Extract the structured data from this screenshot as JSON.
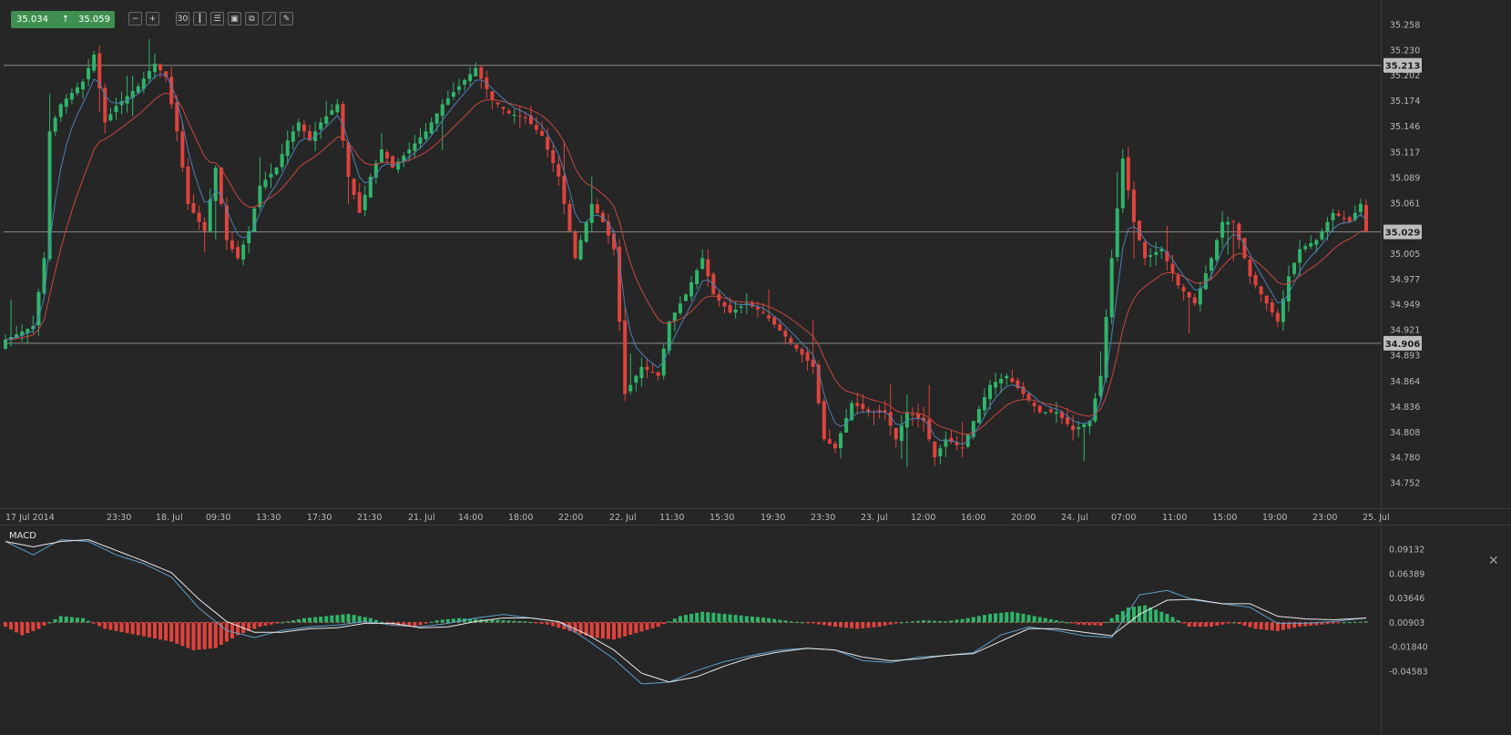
{
  "header": {
    "bid": "35.034",
    "ask": "35.059",
    "arrow_icon": "arrow-up-icon"
  },
  "toolbar": [
    {
      "name": "zoom-out-icon",
      "glyph": "−"
    },
    {
      "name": "zoom-in-icon",
      "glyph": "+"
    },
    {
      "name": "timeframe-button",
      "glyph": "30"
    },
    {
      "name": "candles-icon",
      "glyph": "┃"
    },
    {
      "name": "indicators-icon",
      "glyph": "☰"
    },
    {
      "name": "chart-type-icon",
      "glyph": "▣"
    },
    {
      "name": "copy-icon",
      "glyph": "⧉"
    },
    {
      "name": "draw-line-icon",
      "glyph": "⟋"
    },
    {
      "name": "pencil-icon",
      "glyph": "✎"
    }
  ],
  "colors": {
    "background": "#262626",
    "up": "#2fb56a",
    "down": "#e0433d",
    "ema_fast": "#4b7fb3",
    "ema_slow": "#c8473f",
    "macd_line": "#5d9fc9",
    "signal_line": "#e8e8e8",
    "level_line": "#8c8c8c",
    "grid_text": "#b8b8b8"
  },
  "chart_data": [
    {
      "type": "candlestick",
      "title": "",
      "y_ticks": [
        "35.258",
        "35.230",
        "35.202",
        "35.174",
        "35.146",
        "35.117",
        "35.089",
        "35.061",
        "35.005",
        "34.977",
        "34.949",
        "34.921",
        "34.893",
        "34.864",
        "34.836",
        "34.808",
        "34.780",
        "34.752"
      ],
      "ylim": [
        34.73,
        35.275
      ],
      "x_labels": [
        "17 Jul 2014",
        "23:30",
        "18. Jul",
        "09:30",
        "13:30",
        "17:30",
        "21:30",
        "21. Jul",
        "14:00",
        "18:00",
        "22:00",
        "22. Jul",
        "11:30",
        "15:30",
        "19:30",
        "23:30",
        "23. Jul",
        "12:00",
        "16:00",
        "20:00",
        "24. Jul",
        "07:00",
        "11:00",
        "15:00",
        "19:00",
        "23:00",
        "25. Jul"
      ],
      "levels": [
        "35.213",
        "35.029",
        "34.906"
      ],
      "overlays": [
        "fast moving average (blue)",
        "slow moving average (red)"
      ],
      "anchors": [
        [
          0,
          34.91
        ],
        [
          5,
          34.925
        ],
        [
          7,
          35.0
        ],
        [
          8,
          35.14
        ],
        [
          10,
          35.17
        ],
        [
          14,
          35.195
        ],
        [
          16,
          35.225
        ],
        [
          18,
          35.15
        ],
        [
          20,
          35.168
        ],
        [
          24,
          35.19
        ],
        [
          27,
          35.215
        ],
        [
          29,
          35.2
        ],
        [
          31,
          35.14
        ],
        [
          33,
          35.06
        ],
        [
          36,
          35.03
        ],
        [
          38,
          35.1
        ],
        [
          40,
          35.02
        ],
        [
          42,
          35.0
        ],
        [
          44,
          35.03
        ],
        [
          46,
          35.08
        ],
        [
          49,
          35.1
        ],
        [
          51,
          35.13
        ],
        [
          53,
          35.15
        ],
        [
          55,
          35.13
        ],
        [
          57,
          35.15
        ],
        [
          60,
          35.17
        ],
        [
          62,
          35.09
        ],
        [
          64,
          35.05
        ],
        [
          66,
          35.09
        ],
        [
          68,
          35.12
        ],
        [
          70,
          35.1
        ],
        [
          73,
          35.12
        ],
        [
          76,
          35.14
        ],
        [
          79,
          35.17
        ],
        [
          82,
          35.19
        ],
        [
          85,
          35.21
        ],
        [
          88,
          35.175
        ],
        [
          91,
          35.16
        ],
        [
          94,
          35.155
        ],
        [
          97,
          35.135
        ],
        [
          100,
          35.09
        ],
        [
          103,
          35.0
        ],
        [
          106,
          35.06
        ],
        [
          108,
          35.04
        ],
        [
          110,
          35.01
        ],
        [
          112,
          34.85
        ],
        [
          115,
          34.88
        ],
        [
          118,
          34.87
        ],
        [
          120,
          34.93
        ],
        [
          123,
          34.96
        ],
        [
          126,
          35.0
        ],
        [
          128,
          34.96
        ],
        [
          131,
          34.94
        ],
        [
          134,
          34.95
        ],
        [
          137,
          34.94
        ],
        [
          140,
          34.92
        ],
        [
          143,
          34.9
        ],
        [
          146,
          34.88
        ],
        [
          148,
          34.8
        ],
        [
          150,
          34.79
        ],
        [
          153,
          34.84
        ],
        [
          156,
          34.83
        ],
        [
          159,
          34.83
        ],
        [
          161,
          34.8
        ],
        [
          163,
          34.83
        ],
        [
          166,
          34.82
        ],
        [
          168,
          34.78
        ],
        [
          170,
          34.8
        ],
        [
          173,
          34.79
        ],
        [
          175,
          34.82
        ],
        [
          178,
          34.86
        ],
        [
          181,
          34.87
        ],
        [
          184,
          34.85
        ],
        [
          187,
          34.83
        ],
        [
          190,
          34.83
        ],
        [
          193,
          34.81
        ],
        [
          196,
          34.82
        ],
        [
          198,
          34.87
        ],
        [
          200,
          35.0
        ],
        [
          202,
          35.11
        ],
        [
          204,
          35.04
        ],
        [
          206,
          35.0
        ],
        [
          209,
          35.01
        ],
        [
          212,
          34.97
        ],
        [
          215,
          34.95
        ],
        [
          218,
          35.0
        ],
        [
          220,
          35.04
        ],
        [
          222,
          35.04
        ],
        [
          225,
          34.98
        ],
        [
          228,
          34.95
        ],
        [
          230,
          34.93
        ],
        [
          232,
          34.98
        ],
        [
          234,
          35.01
        ],
        [
          237,
          35.02
        ],
        [
          240,
          35.05
        ],
        [
          243,
          35.04
        ],
        [
          245,
          35.06
        ],
        [
          246,
          35.03
        ]
      ]
    },
    {
      "type": "histogram",
      "title": "MACD",
      "y_ticks": [
        "0.09132",
        "0.06389",
        "0.03646",
        "0.00903",
        "-0.01840",
        "-0.04583"
      ],
      "ylim": [
        -0.0685,
        0.1195
      ],
      "series": [
        {
          "name": "MACD",
          "anchors": [
            [
              0,
              0.1
            ],
            [
              5,
              0.085
            ],
            [
              10,
              0.102
            ],
            [
              15,
              0.1
            ],
            [
              20,
              0.085
            ],
            [
              25,
              0.075
            ],
            [
              30,
              0.06
            ],
            [
              35,
              0.025
            ],
            [
              40,
              0.0
            ],
            [
              45,
              -0.008
            ],
            [
              50,
              0.0
            ],
            [
              55,
              0.004
            ],
            [
              60,
              0.006
            ],
            [
              65,
              0.01
            ],
            [
              70,
              0.006
            ],
            [
              75,
              0.004
            ],
            [
              80,
              0.008
            ],
            [
              85,
              0.014
            ],
            [
              90,
              0.018
            ],
            [
              95,
              0.014
            ],
            [
              100,
              0.01
            ],
            [
              105,
              -0.01
            ],
            [
              110,
              -0.032
            ],
            [
              115,
              -0.06
            ],
            [
              120,
              -0.058
            ],
            [
              125,
              -0.045
            ],
            [
              130,
              -0.035
            ],
            [
              135,
              -0.028
            ],
            [
              140,
              -0.022
            ],
            [
              145,
              -0.02
            ],
            [
              150,
              -0.022
            ],
            [
              155,
              -0.034
            ],
            [
              160,
              -0.036
            ],
            [
              165,
              -0.03
            ],
            [
              170,
              -0.028
            ],
            [
              175,
              -0.025
            ],
            [
              180,
              -0.005
            ],
            [
              185,
              0.004
            ],
            [
              190,
              0.0
            ],
            [
              195,
              -0.006
            ],
            [
              200,
              -0.008
            ],
            [
              205,
              0.04
            ],
            [
              210,
              0.045
            ],
            [
              215,
              0.034
            ],
            [
              220,
              0.03
            ],
            [
              225,
              0.026
            ],
            [
              230,
              0.008
            ],
            [
              235,
              0.008
            ],
            [
              240,
              0.01
            ],
            [
              246,
              0.014
            ]
          ]
        },
        {
          "name": "Signal",
          "anchors": [
            [
              0,
              0.1
            ],
            [
              5,
              0.094
            ],
            [
              10,
              0.1
            ],
            [
              15,
              0.102
            ],
            [
              20,
              0.09
            ],
            [
              25,
              0.078
            ],
            [
              30,
              0.065
            ],
            [
              35,
              0.035
            ],
            [
              40,
              0.01
            ],
            [
              45,
              -0.002
            ],
            [
              50,
              -0.002
            ],
            [
              55,
              0.002
            ],
            [
              60,
              0.003
            ],
            [
              65,
              0.008
            ],
            [
              70,
              0.008
            ],
            [
              75,
              0.003
            ],
            [
              80,
              0.004
            ],
            [
              85,
              0.01
            ],
            [
              90,
              0.014
            ],
            [
              95,
              0.014
            ],
            [
              100,
              0.01
            ],
            [
              105,
              -0.004
            ],
            [
              110,
              -0.022
            ],
            [
              115,
              -0.048
            ],
            [
              120,
              -0.058
            ],
            [
              125,
              -0.052
            ],
            [
              130,
              -0.04
            ],
            [
              135,
              -0.03
            ],
            [
              140,
              -0.024
            ],
            [
              145,
              -0.02
            ],
            [
              150,
              -0.022
            ],
            [
              155,
              -0.03
            ],
            [
              160,
              -0.034
            ],
            [
              165,
              -0.032
            ],
            [
              170,
              -0.028
            ],
            [
              175,
              -0.026
            ],
            [
              180,
              -0.012
            ],
            [
              185,
              0.002
            ],
            [
              190,
              0.002
            ],
            [
              195,
              -0.002
            ],
            [
              200,
              -0.006
            ],
            [
              205,
              0.018
            ],
            [
              210,
              0.034
            ],
            [
              215,
              0.035
            ],
            [
              220,
              0.03
            ],
            [
              225,
              0.03
            ],
            [
              230,
              0.016
            ],
            [
              235,
              0.013
            ],
            [
              240,
              0.012
            ],
            [
              246,
              0.014
            ]
          ]
        }
      ],
      "histogram_anchors": [
        [
          0,
          -0.004
        ],
        [
          3,
          -0.012
        ],
        [
          6,
          -0.006
        ],
        [
          10,
          0.006
        ],
        [
          14,
          0.004
        ],
        [
          18,
          -0.006
        ],
        [
          22,
          -0.01
        ],
        [
          26,
          -0.014
        ],
        [
          30,
          -0.018
        ],
        [
          34,
          -0.026
        ],
        [
          38,
          -0.024
        ],
        [
          42,
          -0.012
        ],
        [
          46,
          -0.004
        ],
        [
          50,
          0.0
        ],
        [
          54,
          0.004
        ],
        [
          58,
          0.006
        ],
        [
          62,
          0.008
        ],
        [
          66,
          0.004
        ],
        [
          70,
          -0.003
        ],
        [
          74,
          -0.004
        ],
        [
          78,
          0.002
        ],
        [
          82,
          0.004
        ],
        [
          86,
          0.003
        ],
        [
          90,
          0.002
        ],
        [
          94,
          0.001
        ],
        [
          98,
          -0.002
        ],
        [
          102,
          -0.008
        ],
        [
          106,
          -0.014
        ],
        [
          110,
          -0.016
        ],
        [
          114,
          -0.01
        ],
        [
          118,
          -0.004
        ],
        [
          122,
          0.006
        ],
        [
          126,
          0.01
        ],
        [
          130,
          0.008
        ],
        [
          134,
          0.006
        ],
        [
          138,
          0.004
        ],
        [
          142,
          0.001
        ],
        [
          146,
          -0.001
        ],
        [
          150,
          -0.004
        ],
        [
          154,
          -0.006
        ],
        [
          158,
          -0.004
        ],
        [
          162,
          0.0
        ],
        [
          166,
          0.002
        ],
        [
          170,
          0.001
        ],
        [
          174,
          0.004
        ],
        [
          178,
          0.008
        ],
        [
          182,
          0.01
        ],
        [
          186,
          0.006
        ],
        [
          190,
          0.002
        ],
        [
          194,
          -0.002
        ],
        [
          198,
          -0.003
        ],
        [
          200,
          0.004
        ],
        [
          203,
          0.014
        ],
        [
          206,
          0.016
        ],
        [
          210,
          0.008
        ],
        [
          214,
          -0.004
        ],
        [
          218,
          -0.004
        ],
        [
          222,
          0.0
        ],
        [
          226,
          -0.006
        ],
        [
          230,
          -0.008
        ],
        [
          234,
          -0.004
        ],
        [
          238,
          -0.002
        ],
        [
          242,
          0.0
        ],
        [
          246,
          0.001
        ]
      ]
    }
  ]
}
